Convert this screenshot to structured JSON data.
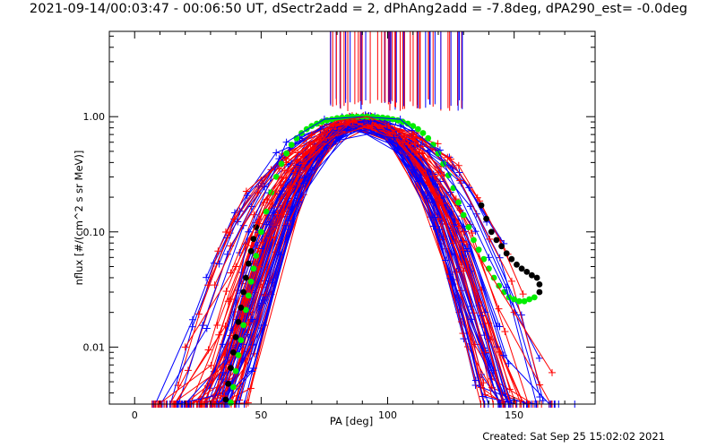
{
  "header": {
    "title": "2021-09-14/00:03:47 - 00:06:50 UT, dSectr2add = 2, dPhAng2add = -7.8deg, dPA290_est= -0.0deg"
  },
  "footer": {
    "created": "Created: Sat Sep 25 15:02:02 2021"
  },
  "colors": {
    "red": "#ff0000",
    "blue": "#0000ff",
    "green": "#00ee00",
    "black": "#000000"
  },
  "chart_data": {
    "type": "line",
    "title": "",
    "xlabel": "PA [deg]",
    "ylabel": "nflux [#/(cm^2 s sr MeV)]",
    "xlim": [
      -10,
      182
    ],
    "ylim": [
      0.0032,
      5.5
    ],
    "yscale": "log",
    "x_ticks": [
      {
        "value": 0,
        "label": "0"
      },
      {
        "value": 50,
        "label": "50"
      },
      {
        "value": 100,
        "label": "100"
      },
      {
        "value": 150,
        "label": "150"
      }
    ],
    "y_ticks": [
      {
        "value": 0.01,
        "label": "0.01"
      },
      {
        "value": 0.1,
        "label": "0.10"
      },
      {
        "value": 1.0,
        "label": "1.00"
      }
    ],
    "grid": false,
    "series": [
      {
        "style": "green dots",
        "color": "#00ee00",
        "points": [
          [
            38,
            0.0033
          ],
          [
            39,
            0.0045
          ],
          [
            40,
            0.0062
          ],
          [
            41,
            0.0085
          ],
          [
            42,
            0.0115
          ],
          [
            43,
            0.0155
          ],
          [
            44,
            0.021
          ],
          [
            45,
            0.028
          ],
          [
            46,
            0.037
          ],
          [
            47,
            0.048
          ],
          [
            48,
            0.062
          ],
          [
            50,
            0.1
          ],
          [
            52,
            0.15
          ],
          [
            54,
            0.22
          ],
          [
            56,
            0.3
          ],
          [
            58,
            0.39
          ],
          [
            60,
            0.48
          ],
          [
            62,
            0.57
          ],
          [
            64,
            0.65
          ],
          [
            66,
            0.72
          ],
          [
            68,
            0.78
          ],
          [
            70,
            0.83
          ],
          [
            72,
            0.87
          ],
          [
            74,
            0.9
          ],
          [
            76,
            0.93
          ],
          [
            78,
            0.95
          ],
          [
            80,
            0.97
          ],
          [
            82,
            0.98
          ],
          [
            84,
            0.99
          ],
          [
            86,
            1.0
          ],
          [
            88,
            1.0
          ],
          [
            90,
            1.0
          ],
          [
            92,
            1.0
          ],
          [
            94,
            1.0
          ],
          [
            96,
            0.99
          ],
          [
            98,
            0.98
          ],
          [
            100,
            0.97
          ],
          [
            102,
            0.95
          ],
          [
            104,
            0.93
          ],
          [
            106,
            0.9
          ],
          [
            108,
            0.87
          ],
          [
            110,
            0.83
          ],
          [
            112,
            0.78
          ],
          [
            114,
            0.72
          ],
          [
            116,
            0.65
          ],
          [
            118,
            0.57
          ],
          [
            120,
            0.48
          ],
          [
            122,
            0.39
          ],
          [
            124,
            0.31
          ],
          [
            126,
            0.24
          ],
          [
            128,
            0.18
          ],
          [
            130,
            0.14
          ],
          [
            132,
            0.11
          ],
          [
            134,
            0.085
          ],
          [
            136,
            0.07
          ],
          [
            138,
            0.058
          ],
          [
            140,
            0.048
          ],
          [
            142,
            0.04
          ],
          [
            144,
            0.034
          ],
          [
            146,
            0.03
          ],
          [
            148,
            0.027
          ],
          [
            150,
            0.026
          ],
          [
            152,
            0.025
          ],
          [
            154,
            0.025
          ],
          [
            156,
            0.026
          ],
          [
            158,
            0.027
          ]
        ]
      },
      {
        "style": "black dots",
        "color": "#000000",
        "points": [
          [
            36,
            0.0035
          ],
          [
            37,
            0.0048
          ],
          [
            38,
            0.0066
          ],
          [
            39,
            0.009
          ],
          [
            40,
            0.0122
          ],
          [
            41,
            0.0165
          ],
          [
            42,
            0.022
          ],
          [
            43,
            0.03
          ],
          [
            44,
            0.04
          ],
          [
            45,
            0.053
          ],
          [
            46,
            0.068
          ],
          [
            47,
            0.087
          ],
          [
            48,
            0.11
          ],
          [
            137,
            0.17
          ],
          [
            139,
            0.13
          ],
          [
            141,
            0.1
          ],
          [
            143,
            0.085
          ],
          [
            145,
            0.075
          ],
          [
            147,
            0.065
          ],
          [
            149,
            0.058
          ],
          [
            151,
            0.052
          ],
          [
            153,
            0.048
          ],
          [
            155,
            0.045
          ],
          [
            157,
            0.042
          ],
          [
            159,
            0.04
          ],
          [
            160,
            0.035
          ],
          [
            160,
            0.03
          ]
        ]
      },
      {
        "style": "blue lines with crosses",
        "color": "#0000ff",
        "points": [
          [
            35,
            0.006
          ],
          [
            45,
            0.1
          ],
          [
            60,
            0.6
          ],
          [
            75,
            0.95
          ],
          [
            90,
            1.0
          ],
          [
            105,
            0.95
          ],
          [
            120,
            0.5
          ],
          [
            140,
            0.06
          ],
          [
            160,
            0.008
          ]
        ]
      },
      {
        "style": "red lines with crosses",
        "color": "#ff0000",
        "points": [
          [
            20,
            0.01
          ],
          [
            40,
            0.05
          ],
          [
            60,
            0.4
          ],
          [
            80,
            0.92
          ],
          [
            92,
            1.0
          ],
          [
            110,
            0.7
          ],
          [
            130,
            0.1
          ],
          [
            150,
            0.02
          ],
          [
            165,
            0.006
          ]
        ]
      }
    ]
  }
}
